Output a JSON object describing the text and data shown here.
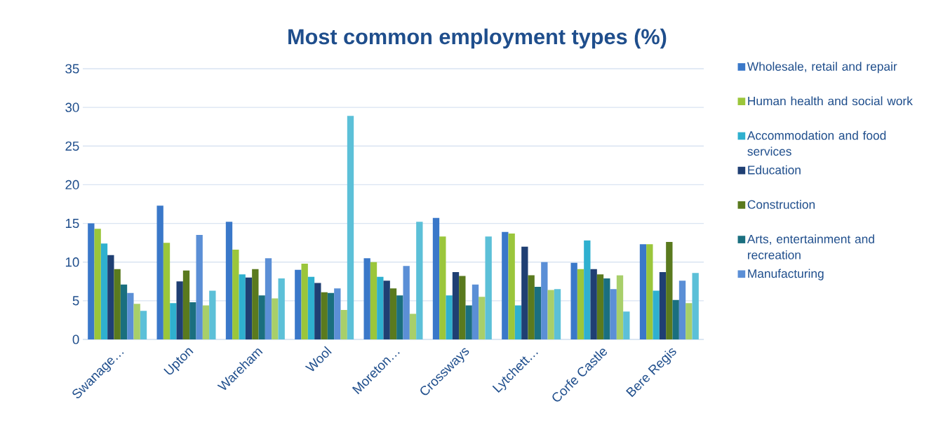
{
  "chart_data": {
    "type": "bar",
    "title": "Most common employment types (%)",
    "categories": [
      "Swanage…",
      "Upton",
      "Wareham",
      "Wool",
      "Moreton…",
      "Crossways",
      "Lytchett…",
      "Corfe Castle",
      "Bere Regis"
    ],
    "series": [
      {
        "name": "Wholesale, retail and repair",
        "color": "#3a78c9",
        "values": [
          15.0,
          17.3,
          15.2,
          9.0,
          10.5,
          15.7,
          13.9,
          9.9,
          12.3
        ]
      },
      {
        "name": "Human health and social work",
        "color": "#9bc63b",
        "values": [
          14.3,
          12.5,
          11.6,
          9.8,
          10.0,
          13.3,
          13.7,
          9.1,
          12.3
        ]
      },
      {
        "name": "Accommodation and food services",
        "color": "#2fb0cf",
        "values": [
          12.4,
          4.7,
          8.4,
          8.1,
          8.1,
          5.7,
          4.4,
          12.8,
          6.3
        ]
      },
      {
        "name": "Education",
        "color": "#1f3f73",
        "values": [
          10.9,
          7.5,
          8.0,
          7.3,
          7.6,
          8.7,
          12.0,
          9.1,
          8.7
        ]
      },
      {
        "name": "Construction",
        "color": "#5a7a1e",
        "values": [
          9.1,
          8.9,
          9.1,
          6.1,
          6.6,
          8.2,
          8.3,
          8.4,
          12.6
        ]
      },
      {
        "name": "Arts, entertainment and recreation",
        "color": "#1a6f7f",
        "values": [
          7.1,
          4.8,
          5.7,
          6.0,
          5.7,
          4.4,
          6.8,
          7.9,
          5.1
        ]
      },
      {
        "name": "Manufacturing",
        "color": "#5b8fd6",
        "values": [
          6.0,
          13.5,
          10.5,
          6.6,
          9.5,
          7.1,
          10.0,
          6.5,
          7.6
        ]
      },
      {
        "color": "#a8cf6a",
        "values": [
          4.6,
          4.4,
          5.3,
          3.8,
          3.3,
          5.5,
          6.4,
          8.3,
          4.7
        ]
      },
      {
        "color": "#5cc0d8",
        "values": [
          3.7,
          6.3,
          7.9,
          28.9,
          15.2,
          13.3,
          6.5,
          3.6,
          8.6
        ]
      }
    ],
    "ylim": [
      0,
      35
    ],
    "yticks": [
      0,
      5,
      10,
      15,
      20,
      25,
      30,
      35
    ],
    "grid": "y",
    "legend": "right"
  }
}
